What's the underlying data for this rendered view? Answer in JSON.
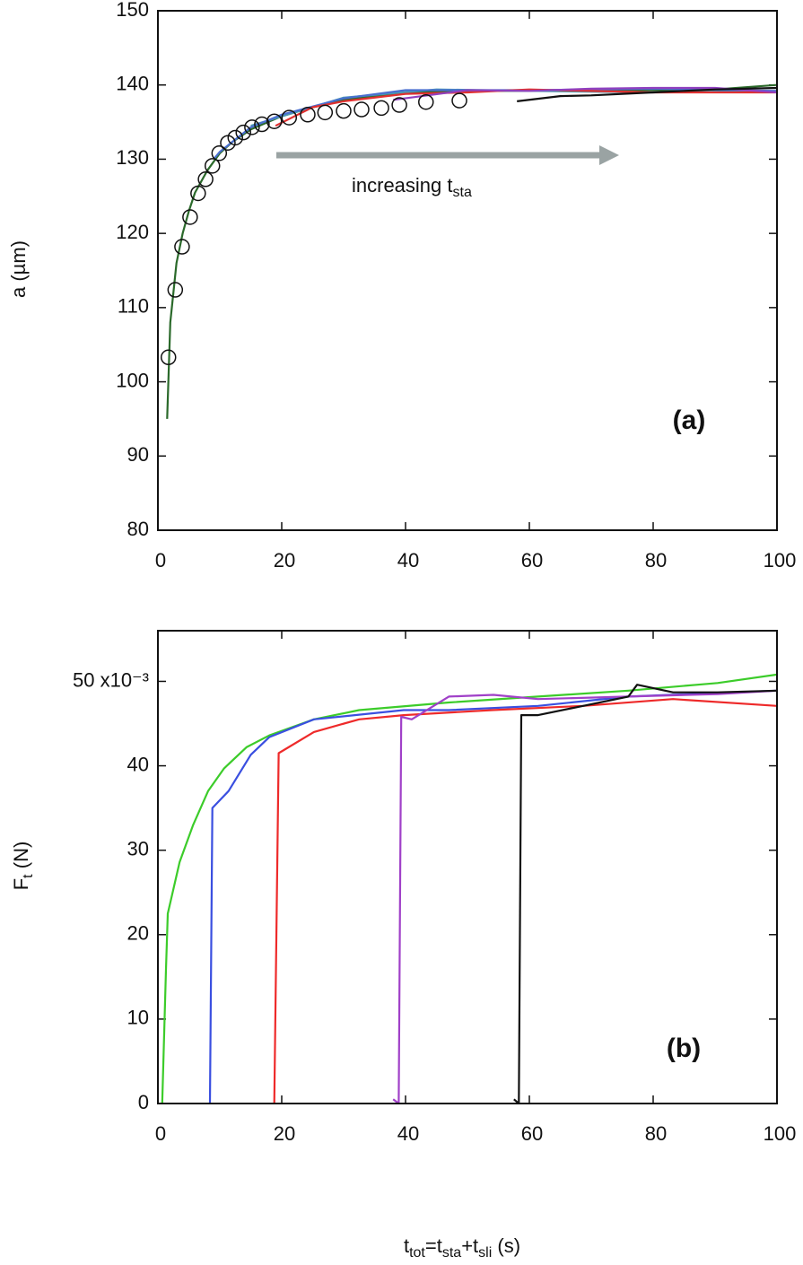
{
  "chart_data": [
    {
      "type": "line",
      "panel_label": "(a)",
      "y_label": [
        {
          "text": "a (µm)",
          "sub": false
        }
      ],
      "annotation": [
        {
          "text": "increasing t",
          "sub": false
        },
        {
          "text": "sta",
          "sub": true
        }
      ],
      "xlim": [
        0,
        100
      ],
      "xticks": [
        0,
        20,
        40,
        60,
        80,
        100
      ],
      "ylim": [
        80,
        150
      ],
      "yticks": [
        80,
        90,
        100,
        110,
        120,
        130,
        140,
        150
      ],
      "grid": false,
      "series": [
        {
          "color": "#2b6a2b",
          "mode": "lines",
          "x": [
            1.5,
            2,
            3,
            4,
            5,
            6,
            8,
            10,
            12,
            15,
            20,
            25,
            30,
            40,
            50,
            60,
            70,
            80,
            90,
            100
          ],
          "values": [
            95,
            108,
            116,
            120,
            123,
            125.5,
            128.5,
            130.8,
            132.3,
            134,
            135.8,
            137,
            138,
            139,
            139.2,
            139.2,
            139.3,
            139.3,
            139.4,
            140
          ]
        },
        {
          "color": "#4a9ab0",
          "mode": "lines",
          "x": [
            15,
            30,
            45,
            60,
            80,
            100
          ],
          "values": [
            134.5,
            138.3,
            139.4,
            139.2,
            139,
            139.2
          ]
        },
        {
          "color": "#4a6fd0",
          "mode": "lines",
          "x": [
            9,
            10,
            15,
            20,
            30,
            40,
            60,
            80,
            100
          ],
          "values": [
            130,
            131,
            134.3,
            136,
            138.2,
            139.3,
            139.3,
            139.5,
            139.2
          ]
        },
        {
          "color": "#e03030",
          "mode": "lines",
          "x": [
            19,
            25,
            30,
            40,
            50,
            60,
            80,
            100
          ],
          "values": [
            134.5,
            137,
            137.8,
            138.8,
            139,
            139.4,
            139,
            139
          ]
        },
        {
          "color": "#9040c0",
          "mode": "lines",
          "x": [
            38,
            50,
            60,
            70,
            80,
            90,
            100
          ],
          "values": [
            138,
            139.3,
            139.2,
            139.5,
            139.6,
            139.6,
            139
          ]
        },
        {
          "color": "#111111",
          "mode": "lines",
          "x": [
            58,
            65,
            70,
            80,
            90,
            100
          ],
          "values": [
            137.8,
            138.5,
            138.6,
            139,
            139.4,
            139.6
          ]
        },
        {
          "color": "#111111",
          "mode": "markers",
          "x": [
            1.7,
            2.8,
            3.9,
            5.2,
            6.5,
            7.7,
            8.8,
            9.9,
            11.3,
            12.5,
            13.8,
            15.2,
            16.8,
            18.8,
            21.2,
            24.2,
            27.0,
            30.0,
            32.9,
            36.1,
            39.0,
            43.3,
            48.7
          ],
          "values": [
            103.3,
            112.4,
            118.2,
            122.2,
            125.4,
            127.3,
            129.1,
            130.8,
            132.2,
            132.9,
            133.6,
            134.3,
            134.7,
            135.1,
            135.6,
            136.0,
            136.3,
            136.5,
            136.7,
            136.9,
            137.3,
            137.7,
            137.9
          ]
        }
      ]
    },
    {
      "type": "line",
      "panel_label": "(b)",
      "y_label": [
        {
          "text": "F",
          "sub": false
        },
        {
          "text": "t",
          "sub": true
        },
        {
          "text": " (N)",
          "sub": false
        }
      ],
      "x_label": [
        {
          "text": "t",
          "sub": false
        },
        {
          "text": "tot",
          "sub": true
        },
        {
          "text": "=t",
          "sub": false
        },
        {
          "text": "sta",
          "sub": true
        },
        {
          "text": "+t",
          "sub": false
        },
        {
          "text": "sli",
          "sub": true
        },
        {
          "text": " (s)",
          "sub": false
        }
      ],
      "xlim": [
        0,
        100
      ],
      "xticks": [
        0,
        20,
        40,
        60,
        80,
        100
      ],
      "ylim": [
        0,
        56
      ],
      "yticks": [
        0,
        10,
        20,
        30,
        40,
        {
          "value": 50,
          "label": "50 x10⁻³"
        }
      ],
      "grid": false,
      "series": [
        {
          "color": "#3ccc2a",
          "mode": "lines",
          "x": [
            0.7,
            1.3,
            1.6,
            3.5,
            5.7,
            8.1,
            10.7,
            14.3,
            18,
            25.2,
            32.5,
            47,
            61.4,
            76,
            90.4,
            100
          ],
          "values": [
            0,
            15.9,
            22.5,
            28.6,
            33,
            37,
            39.7,
            42.2,
            43.6,
            45.5,
            46.6,
            47.5,
            48.2,
            48.9,
            49.8,
            50.8
          ]
        },
        {
          "color": "#3a4fe0",
          "mode": "lines",
          "x": [
            8.4,
            8.8,
            11.4,
            15,
            18,
            25.2,
            39.7,
            47,
            61.4,
            76,
            100
          ],
          "values": [
            0,
            35,
            37,
            41.3,
            43.4,
            45.5,
            46.6,
            46.6,
            47.1,
            48.2,
            48.9
          ]
        },
        {
          "color": "#ee2a2a",
          "mode": "lines",
          "x": [
            18.8,
            19.5,
            25.2,
            32.5,
            39.7,
            54,
            68.7,
            83.2,
            100
          ],
          "values": [
            0,
            41.5,
            44,
            45.5,
            46,
            46.6,
            47.1,
            47.9,
            47.1
          ]
        },
        {
          "color": "#a040c8",
          "mode": "lines",
          "x": [
            38,
            38.9,
            39.3,
            41,
            47,
            54.2,
            61.4,
            76,
            90.4,
            100
          ],
          "values": [
            0.5,
            0,
            45.8,
            45.5,
            48.2,
            48.4,
            47.9,
            48.2,
            48.5,
            48.9
          ]
        },
        {
          "color": "#111111",
          "mode": "lines",
          "x": [
            57.5,
            58.3,
            58.7,
            61.4,
            68.7,
            76,
            77.4,
            83.2,
            90.4,
            100
          ],
          "values": [
            0.5,
            0,
            46,
            46,
            47.1,
            48.2,
            49.6,
            48.7,
            48.7,
            48.9
          ]
        }
      ]
    }
  ]
}
